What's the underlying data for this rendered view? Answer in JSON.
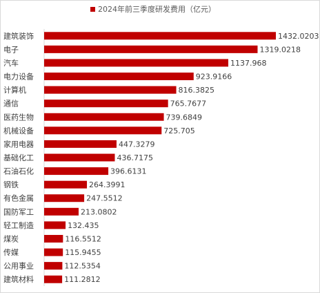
{
  "chart_data": {
    "type": "bar",
    "orientation": "horizontal",
    "title": "",
    "legend": {
      "position": "top",
      "entries": [
        "2024年前三季度研发费用（亿元）"
      ]
    },
    "series": [
      {
        "name": "2024年前三季度研发费用（亿元）",
        "color": "#c00000"
      }
    ],
    "categories": [
      "建筑装饰",
      "电子",
      "汽车",
      "电力设备",
      "计算机",
      "通信",
      "医药生物",
      "机械设备",
      "家用电器",
      "基础化工",
      "石油石化",
      "钢铁",
      "有色金属",
      "国防军工",
      "轻工制造",
      "煤炭",
      "传媒",
      "公用事业",
      "建筑材料"
    ],
    "values": [
      1432.0203,
      1319.0218,
      1137.968,
      923.9166,
      816.3825,
      765.7677,
      739.6849,
      725.705,
      447.3279,
      436.7175,
      396.6131,
      264.3991,
      247.5512,
      213.0802,
      132.435,
      116.5512,
      115.9455,
      112.5354,
      111.2812
    ],
    "value_labels": [
      "1432.0203",
      "1319.0218",
      "1137.968",
      "923.9166",
      "816.3825",
      "765.7677",
      "739.6849",
      "725.705",
      "447.3279",
      "436.7175",
      "396.6131",
      "264.3991",
      "247.5512",
      "213.0802",
      "132.435",
      "116.5512",
      "115.9455",
      "112.5354",
      "111.2812"
    ],
    "xlim": [
      0,
      1432.0203
    ],
    "grid": false
  }
}
